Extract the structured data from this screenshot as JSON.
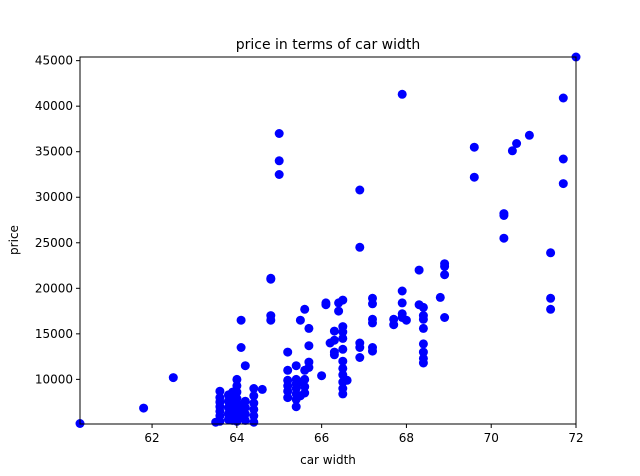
{
  "chart_data": {
    "type": "scatter",
    "title": "price in terms of car width",
    "xlabel": "car width",
    "ylabel": "price",
    "xlim": [
      60.3,
      72.0
    ],
    "ylim": [
      5100,
      45400
    ],
    "grid": false,
    "marker_color": "#0000ff",
    "xticks": [
      62,
      64,
      66,
      68,
      70,
      72
    ],
    "yticks": [
      10000,
      15000,
      20000,
      25000,
      30000,
      35000,
      40000,
      45000
    ],
    "xtick_labels": [
      "62",
      "64",
      "66",
      "68",
      "70",
      "72"
    ],
    "ytick_labels": [
      "10000",
      "15000",
      "20000",
      "25000",
      "30000",
      "35000",
      "40000",
      "45000"
    ],
    "points": [
      [
        60.3,
        5150
      ],
      [
        61.8,
        6850
      ],
      [
        62.5,
        10200
      ],
      [
        63.5,
        5300
      ],
      [
        63.6,
        5400
      ],
      [
        63.6,
        6000
      ],
      [
        63.6,
        6500
      ],
      [
        63.6,
        7000
      ],
      [
        63.6,
        7500
      ],
      [
        63.6,
        8000
      ],
      [
        63.6,
        8700
      ],
      [
        63.8,
        5600
      ],
      [
        63.8,
        6200
      ],
      [
        63.8,
        6900
      ],
      [
        63.8,
        7600
      ],
      [
        63.8,
        8300
      ],
      [
        63.9,
        5500
      ],
      [
        63.9,
        6100
      ],
      [
        63.9,
        6700
      ],
      [
        63.9,
        7400
      ],
      [
        63.9,
        8000
      ],
      [
        63.9,
        8600
      ],
      [
        64.0,
        5400
      ],
      [
        64.0,
        6300
      ],
      [
        64.0,
        7100
      ],
      [
        64.0,
        7900
      ],
      [
        64.0,
        8600
      ],
      [
        64.0,
        9300
      ],
      [
        64.0,
        10000
      ],
      [
        64.1,
        5800
      ],
      [
        64.1,
        6600
      ],
      [
        64.1,
        7200
      ],
      [
        64.1,
        13500
      ],
      [
        64.1,
        16500
      ],
      [
        64.2,
        5500
      ],
      [
        64.2,
        6200
      ],
      [
        64.2,
        6900
      ],
      [
        64.2,
        7600
      ],
      [
        64.2,
        11500
      ],
      [
        64.4,
        5300
      ],
      [
        64.4,
        6000
      ],
      [
        64.4,
        6700
      ],
      [
        64.4,
        7400
      ],
      [
        64.4,
        8200
      ],
      [
        64.4,
        9000
      ],
      [
        64.6,
        8900
      ],
      [
        64.8,
        16500
      ],
      [
        64.8,
        17000
      ],
      [
        64.8,
        21000
      ],
      [
        64.8,
        21100
      ],
      [
        65.0,
        32500
      ],
      [
        65.0,
        34000
      ],
      [
        65.0,
        37000
      ],
      [
        65.2,
        8000
      ],
      [
        65.2,
        8700
      ],
      [
        65.2,
        9300
      ],
      [
        65.2,
        9900
      ],
      [
        65.2,
        11000
      ],
      [
        65.2,
        13000
      ],
      [
        65.4,
        7000
      ],
      [
        65.4,
        7800
      ],
      [
        65.4,
        8400
      ],
      [
        65.4,
        9000
      ],
      [
        65.4,
        9500
      ],
      [
        65.4,
        10000
      ],
      [
        65.4,
        11500
      ],
      [
        65.5,
        8200
      ],
      [
        65.5,
        9700
      ],
      [
        65.5,
        16500
      ],
      [
        65.6,
        8500
      ],
      [
        65.6,
        9200
      ],
      [
        65.6,
        10000
      ],
      [
        65.6,
        11000
      ],
      [
        65.6,
        17700
      ],
      [
        65.7,
        11300
      ],
      [
        65.7,
        11900
      ],
      [
        65.7,
        13700
      ],
      [
        65.7,
        15600
      ],
      [
        66.0,
        10400
      ],
      [
        66.1,
        18200
      ],
      [
        66.1,
        18400
      ],
      [
        66.2,
        14000
      ],
      [
        66.3,
        12700
      ],
      [
        66.3,
        13000
      ],
      [
        66.3,
        14300
      ],
      [
        66.3,
        15300
      ],
      [
        66.4,
        17500
      ],
      [
        66.4,
        18400
      ],
      [
        66.5,
        8400
      ],
      [
        66.5,
        9000
      ],
      [
        66.5,
        9700
      ],
      [
        66.5,
        10500
      ],
      [
        66.5,
        11200
      ],
      [
        66.5,
        12000
      ],
      [
        66.5,
        13300
      ],
      [
        66.5,
        14500
      ],
      [
        66.5,
        15200
      ],
      [
        66.5,
        15800
      ],
      [
        66.5,
        18700
      ],
      [
        66.6,
        9900
      ],
      [
        66.9,
        12400
      ],
      [
        66.9,
        13500
      ],
      [
        66.9,
        14000
      ],
      [
        66.9,
        24500
      ],
      [
        66.9,
        30800
      ],
      [
        67.2,
        13100
      ],
      [
        67.2,
        13500
      ],
      [
        67.2,
        16200
      ],
      [
        67.2,
        16600
      ],
      [
        67.2,
        18300
      ],
      [
        67.2,
        18900
      ],
      [
        67.7,
        16000
      ],
      [
        67.7,
        16600
      ],
      [
        67.9,
        16800
      ],
      [
        67.9,
        17200
      ],
      [
        67.9,
        18400
      ],
      [
        67.9,
        19700
      ],
      [
        67.9,
        41300
      ],
      [
        68.0,
        16500
      ],
      [
        68.3,
        18200
      ],
      [
        68.3,
        22000
      ],
      [
        68.4,
        11800
      ],
      [
        68.4,
        12300
      ],
      [
        68.4,
        13000
      ],
      [
        68.4,
        13900
      ],
      [
        68.4,
        15600
      ],
      [
        68.4,
        16600
      ],
      [
        68.4,
        17000
      ],
      [
        68.4,
        17900
      ],
      [
        68.8,
        19000
      ],
      [
        68.9,
        16800
      ],
      [
        68.9,
        21500
      ],
      [
        68.9,
        22400
      ],
      [
        68.9,
        22700
      ],
      [
        69.6,
        32200
      ],
      [
        69.6,
        35500
      ],
      [
        70.3,
        25500
      ],
      [
        70.3,
        28000
      ],
      [
        70.3,
        28200
      ],
      [
        70.5,
        35100
      ],
      [
        70.6,
        35900
      ],
      [
        70.9,
        36800
      ],
      [
        71.4,
        17700
      ],
      [
        71.4,
        18900
      ],
      [
        71.4,
        23900
      ],
      [
        71.7,
        31500
      ],
      [
        71.7,
        34200
      ],
      [
        71.7,
        40900
      ],
      [
        72.0,
        45400
      ]
    ]
  }
}
